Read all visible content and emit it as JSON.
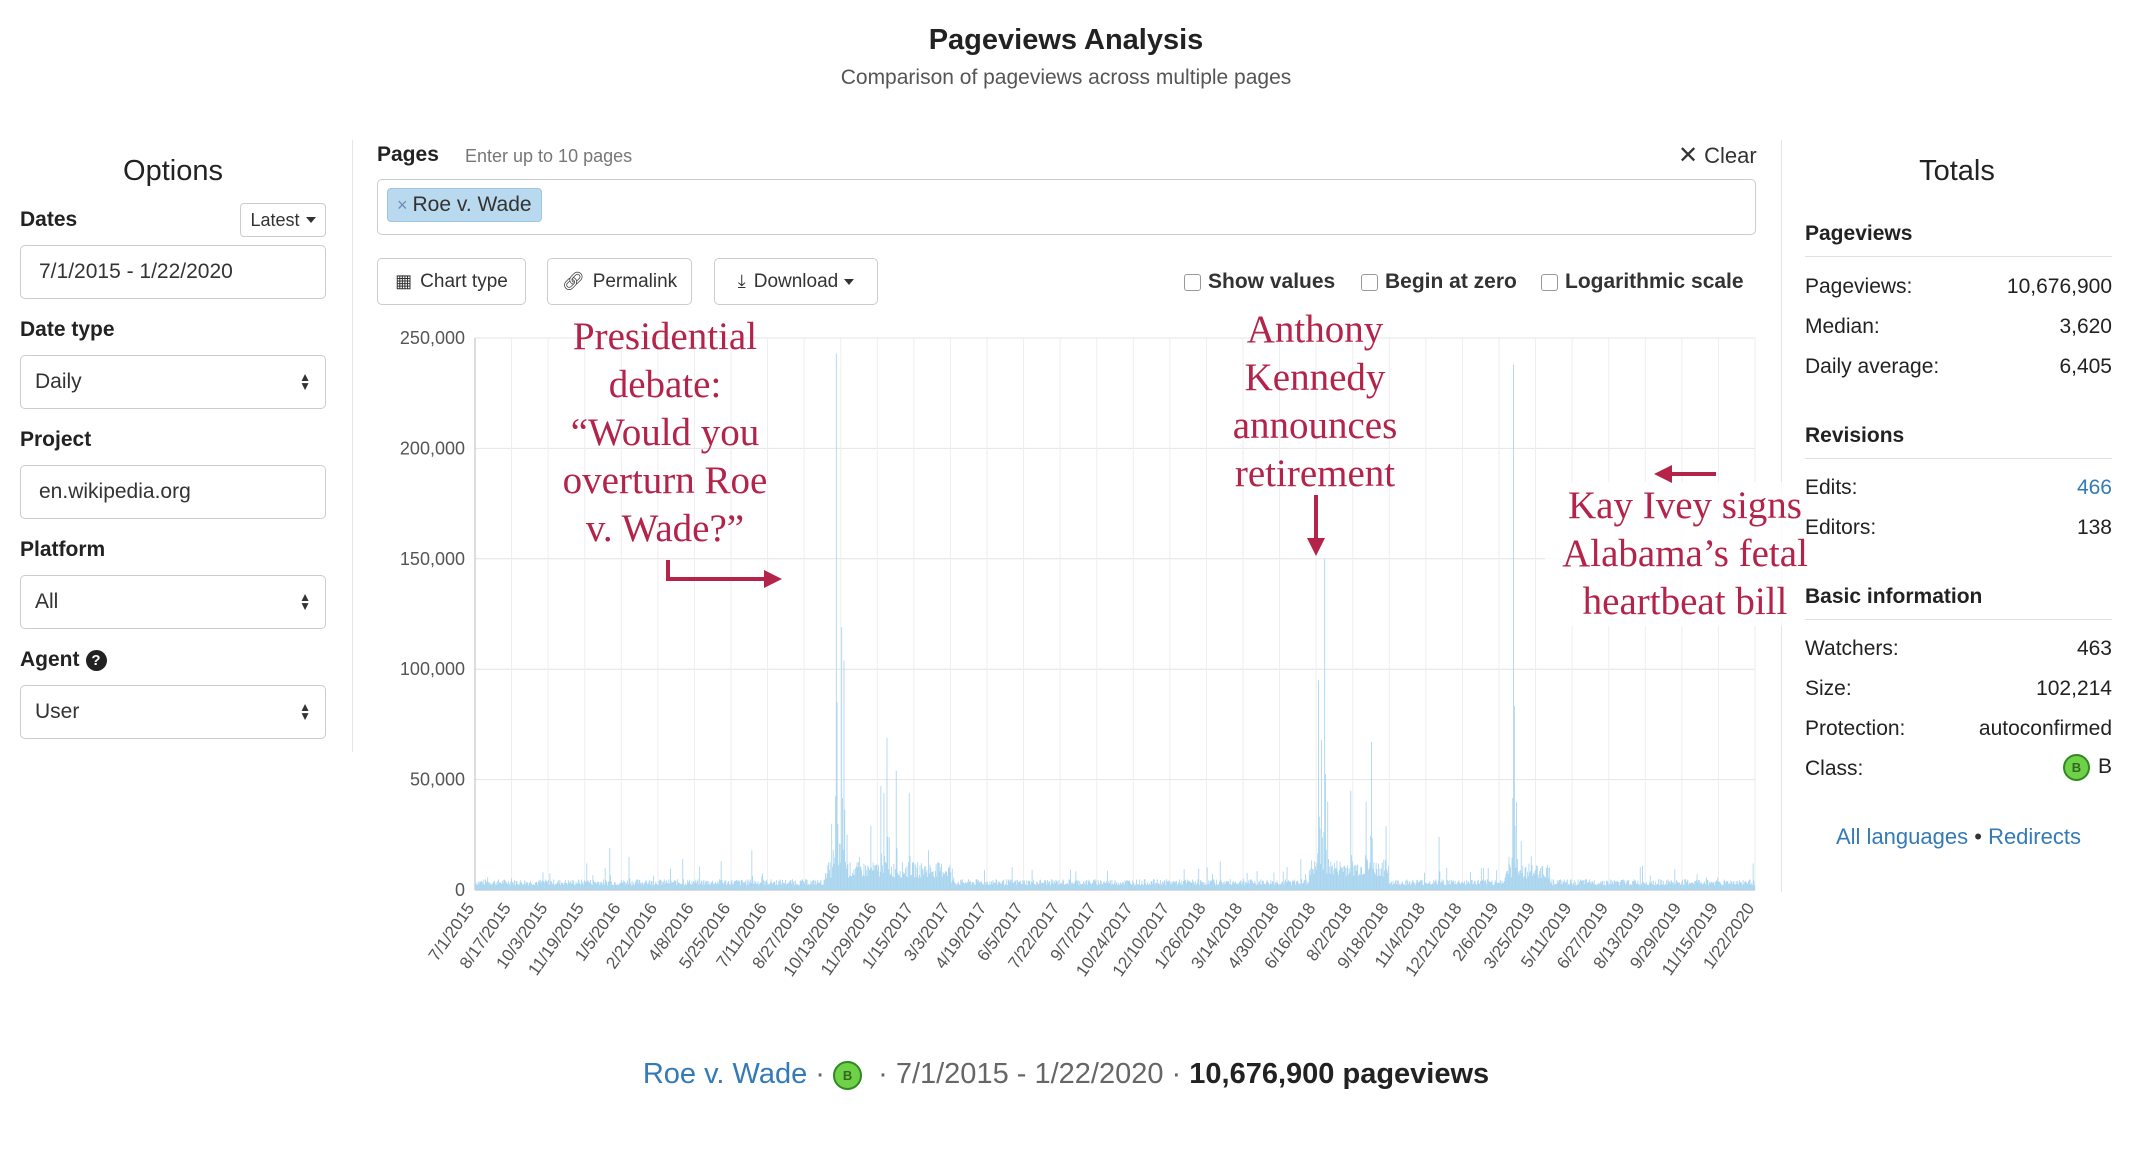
{
  "header": {
    "title": "Pageviews Analysis",
    "subtitle": "Comparison of pageviews across multiple pages"
  },
  "options": {
    "title": "Options",
    "dates_label": "Dates",
    "latest_label": "Latest",
    "date_range": "7/1/2015 - 1/22/2020",
    "date_type_label": "Date type",
    "date_type": "Daily",
    "project_label": "Project",
    "project": "en.wikipedia.org",
    "platform_label": "Platform",
    "platform": "All",
    "agent_label": "Agent",
    "agent": "User"
  },
  "pages": {
    "label": "Pages",
    "hint": "Enter up to 10 pages",
    "clear_label": "Clear",
    "tags": [
      "Roe v. Wade"
    ]
  },
  "toolbar": {
    "chart_type": "Chart type",
    "permalink": "Permalink",
    "download": "Download",
    "show_values": "Show values",
    "begin_at_zero": "Begin at zero",
    "log_scale": "Logarithmic scale"
  },
  "chart_data": {
    "type": "bar",
    "color": "#a8d4ee",
    "ylim": [
      0,
      250000
    ],
    "y_ticks": [
      "0",
      "50,000",
      "100,000",
      "150,000",
      "200,000",
      "250,000"
    ],
    "x_tick_labels": [
      "7/1/2015",
      "8/17/2015",
      "10/3/2015",
      "11/19/2015",
      "1/5/2016",
      "2/21/2016",
      "4/8/2016",
      "5/25/2016",
      "7/11/2016",
      "8/27/2016",
      "10/13/2016",
      "11/29/2016",
      "1/15/2017",
      "3/3/2017",
      "4/19/2017",
      "6/5/2017",
      "7/22/2017",
      "9/7/2017",
      "10/24/2017",
      "12/10/2017",
      "1/26/2018",
      "3/14/2018",
      "4/30/2018",
      "6/16/2018",
      "8/2/2018",
      "9/18/2018",
      "11/4/2018",
      "12/21/2018",
      "2/6/2019",
      "3/25/2019",
      "5/11/2019",
      "6/27/2019",
      "8/13/2019",
      "9/29/2019",
      "11/15/2019",
      "1/22/2020"
    ],
    "grid": true,
    "total_days": 1667,
    "baseline": 3500,
    "peaks": [
      {
        "day": 470,
        "value": 243000
      },
      {
        "day": 464,
        "value": 30000
      },
      {
        "day": 466,
        "value": 18000
      },
      {
        "day": 474,
        "value": 21000
      },
      {
        "day": 477,
        "value": 119000
      },
      {
        "day": 480,
        "value": 104000
      },
      {
        "day": 484,
        "value": 25000
      },
      {
        "day": 500,
        "value": 15000
      },
      {
        "day": 515,
        "value": 29000
      },
      {
        "day": 528,
        "value": 47000
      },
      {
        "day": 532,
        "value": 44000
      },
      {
        "day": 536,
        "value": 69000
      },
      {
        "day": 548,
        "value": 54000
      },
      {
        "day": 565,
        "value": 44000
      },
      {
        "day": 590,
        "value": 18000
      },
      {
        "day": 145,
        "value": 12000
      },
      {
        "day": 175,
        "value": 19000
      },
      {
        "day": 200,
        "value": 15000
      },
      {
        "day": 270,
        "value": 14000
      },
      {
        "day": 320,
        "value": 13000
      },
      {
        "day": 360,
        "value": 18000
      },
      {
        "day": 970,
        "value": 13000
      },
      {
        "day": 1075,
        "value": 14000
      },
      {
        "day": 1098,
        "value": 95000
      },
      {
        "day": 1102,
        "value": 68000
      },
      {
        "day": 1106,
        "value": 150000
      },
      {
        "day": 1110,
        "value": 40000
      },
      {
        "day": 1140,
        "value": 45000
      },
      {
        "day": 1160,
        "value": 40000
      },
      {
        "day": 1167,
        "value": 67000
      },
      {
        "day": 1255,
        "value": 24000
      },
      {
        "day": 1265,
        "value": 10000
      },
      {
        "day": 1310,
        "value": 10000
      },
      {
        "day": 1330,
        "value": 9000
      },
      {
        "day": 1346,
        "value": 15000
      },
      {
        "day": 1352,
        "value": 238000
      },
      {
        "day": 1356,
        "value": 40000
      },
      {
        "day": 1362,
        "value": 22000
      },
      {
        "day": 1372,
        "value": 12000
      },
      {
        "day": 1390,
        "value": 11000
      },
      {
        "day": 1520,
        "value": 11000
      },
      {
        "day": 1664,
        "value": 12000
      }
    ]
  },
  "annotations": {
    "debate": [
      "Presidential",
      "debate:",
      "“Would you",
      "overturn Roe",
      "v. Wade?”"
    ],
    "kennedy": [
      "Anthony",
      "Kennedy",
      "announces",
      "retirement"
    ],
    "ivey": [
      "Kay Ivey signs",
      "Alabama’s fetal",
      "heartbeat bill"
    ]
  },
  "totals": {
    "title": "Totals",
    "pageviews_head": "Pageviews",
    "pageviews_label": "Pageviews:",
    "pageviews": "10,676,900",
    "median_label": "Median:",
    "median": "3,620",
    "daily_avg_label": "Daily average:",
    "daily_avg": "6,405",
    "revisions_head": "Revisions",
    "edits_label": "Edits:",
    "edits": "466",
    "editors_label": "Editors:",
    "editors": "138",
    "basic_head": "Basic information",
    "watchers_label": "Watchers:",
    "watchers": "463",
    "size_label": "Size:",
    "size": "102,214",
    "protection_label": "Protection:",
    "protection": "autoconfirmed",
    "class_label": "Class:",
    "class_badge": "B",
    "class": "B",
    "all_languages": "All languages",
    "separator": "•",
    "redirects": "Redirects"
  },
  "footer": {
    "article": "Roe v. Wade",
    "badge": "B",
    "range": "7/1/2015 - 1/22/2020",
    "pageviews": "10,676,900 pageviews",
    "sep": "·"
  },
  "icons": {
    "grid": "grid-icon",
    "link": "link-icon",
    "download": "download-icon",
    "help": "question-circle-icon",
    "close": "close-icon"
  }
}
